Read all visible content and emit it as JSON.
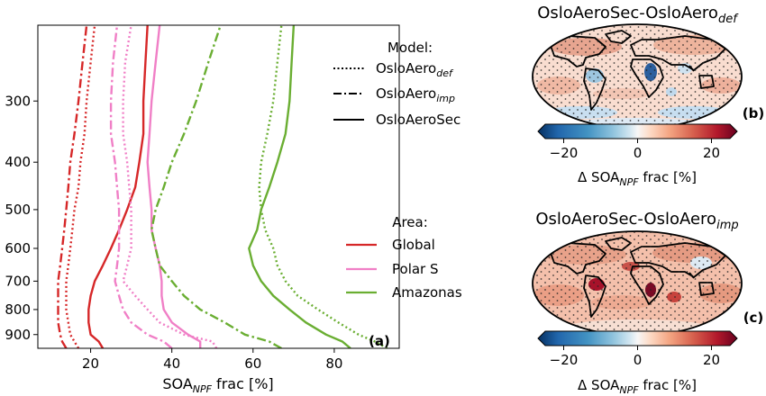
{
  "chart_data": [
    {
      "type": "line",
      "panel_tag": "(a)",
      "xlabel_main": "SOA",
      "xlabel_sub": "NPF",
      "xlabel_rest": " frac [%]",
      "xlim": [
        7,
        96
      ],
      "ylim_hPa": [
        960,
        210
      ],
      "y_scale": "log",
      "x_ticks": [
        20,
        40,
        60,
        80
      ],
      "y_ticks": [
        300,
        400,
        500,
        600,
        700,
        800,
        900
      ],
      "pressure_levels": [
        960,
        930,
        900,
        850,
        800,
        750,
        700,
        650,
        600,
        550,
        500,
        450,
        400,
        350,
        300,
        250,
        210
      ],
      "legend_model": {
        "title": "Model:",
        "entries": [
          {
            "style": "dotted",
            "base": "OsloAero",
            "sub": "def"
          },
          {
            "style": "dashdot",
            "base": "OsloAero",
            "sub": "imp"
          },
          {
            "style": "solid",
            "base": "OsloAeroSec",
            "sub": ""
          }
        ]
      },
      "legend_area": {
        "title": "Area:",
        "entries": [
          {
            "name": "Global",
            "color": "#d62728"
          },
          {
            "name": "Polar S",
            "color": "#f07fc6"
          },
          {
            "name": "Amazonas",
            "color": "#6aae32"
          }
        ]
      },
      "series": [
        {
          "area": "Global",
          "model": "OsloAeroSec",
          "style": "solid",
          "color": "#d62728",
          "x": [
            23,
            22,
            20,
            19.5,
            19.5,
            20,
            21,
            23,
            25,
            27,
            29,
            31,
            32,
            33,
            33,
            33.5,
            34
          ]
        },
        {
          "area": "Global",
          "model": "OsloAerodef",
          "style": "dotted",
          "color": "#d62728",
          "x": [
            17,
            16,
            15,
            14.5,
            14,
            14,
            14,
            14.5,
            15,
            15.5,
            16,
            17,
            17.5,
            18.5,
            19,
            20,
            21
          ]
        },
        {
          "area": "Global",
          "model": "OsloAeroimp",
          "style": "dashdot",
          "color": "#d62728",
          "x": [
            14,
            13,
            12.5,
            12,
            12,
            12,
            12,
            12.5,
            13,
            13.5,
            14,
            14.5,
            15,
            16,
            17,
            18,
            19
          ]
        },
        {
          "area": "Polar S",
          "model": "OsloAeroSec",
          "style": "solid",
          "color": "#f07fc6",
          "x": [
            47,
            47,
            44,
            40,
            38,
            37.5,
            37.5,
            37,
            36,
            35,
            35,
            34.5,
            34,
            34.5,
            35,
            36,
            37
          ]
        },
        {
          "area": "Polar S",
          "model": "OsloAerodef",
          "style": "dotted",
          "color": "#f07fc6",
          "x": [
            51,
            50,
            43,
            37,
            34,
            31,
            28,
            29,
            30,
            30,
            30,
            29.5,
            29,
            28,
            28,
            28.5,
            30
          ]
        },
        {
          "area": "Polar S",
          "model": "OsloAeroimp",
          "style": "dashdot",
          "color": "#f07fc6",
          "x": [
            40,
            38,
            34,
            30,
            28,
            27,
            26,
            26.5,
            27,
            27,
            27,
            26.5,
            26,
            25,
            25,
            25.5,
            26.5
          ]
        },
        {
          "area": "Amazonas",
          "model": "OsloAeroSec",
          "style": "solid",
          "color": "#6aae32",
          "x": [
            84,
            82,
            78,
            73,
            69,
            65,
            62,
            60,
            59,
            61,
            62,
            64,
            66,
            68,
            69,
            69.5,
            70
          ]
        },
        {
          "area": "Amazonas",
          "model": "OsloAerodef",
          "style": "dotted",
          "color": "#6aae32",
          "x": [
            93,
            90,
            86,
            81,
            76,
            71,
            68,
            66,
            65,
            63,
            62,
            61.5,
            62,
            63.5,
            65,
            66,
            67
          ]
        },
        {
          "area": "Amazonas",
          "model": "OsloAeroimp",
          "style": "dashdot",
          "color": "#6aae32",
          "x": [
            67,
            64,
            58,
            53,
            47,
            43,
            40,
            37,
            36,
            35,
            36,
            38,
            40,
            43,
            46,
            49,
            52
          ]
        }
      ]
    },
    {
      "type": "map",
      "panel_tag": "(b)",
      "title_main": "OsloAeroSec-OsloAero",
      "title_sub": "def",
      "colorbar": {
        "ticks": [
          -20,
          0,
          20
        ],
        "vmin": -25,
        "vmax": 25,
        "label_main": "Δ SOA",
        "label_sub": "NPF",
        "label_rest": " frac [%]",
        "colormap": "RdBu_r"
      }
    },
    {
      "type": "map",
      "panel_tag": "(c)",
      "title_main": "OsloAeroSec-OsloAero",
      "title_sub": "imp",
      "colorbar": {
        "ticks": [
          -20,
          0,
          20
        ],
        "vmin": -25,
        "vmax": 25,
        "label_main": "Δ SOA",
        "label_sub": "NPF",
        "label_rest": " frac [%]",
        "colormap": "RdBu_r"
      }
    }
  ]
}
